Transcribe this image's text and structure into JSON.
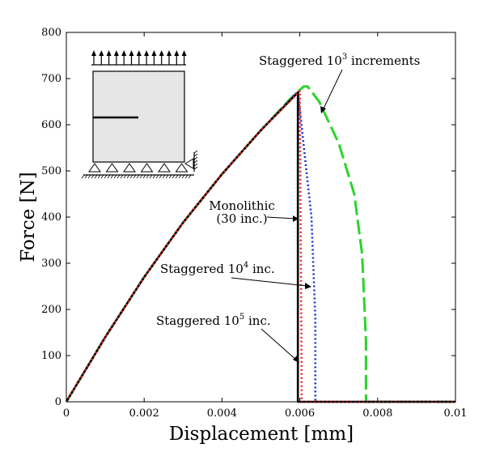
{
  "chart_data": {
    "type": "line",
    "xlabel": "Displacement [mm]",
    "ylabel": "Force [N]",
    "xlim": [
      0,
      0.01
    ],
    "ylim": [
      0,
      800
    ],
    "x_ticks": [
      0,
      0.002,
      0.004,
      0.006,
      0.008,
      0.01
    ],
    "x_tick_labels": [
      "0",
      "0.002",
      "0.004",
      "0.006",
      "0.008",
      "0.01"
    ],
    "y_ticks": [
      0,
      100,
      200,
      300,
      400,
      500,
      600,
      700,
      800
    ],
    "y_tick_labels": [
      "0",
      "100",
      "200",
      "300",
      "400",
      "500",
      "600",
      "700",
      "800"
    ],
    "grid": false,
    "series": [
      {
        "name": "Monolithic (30 inc.)",
        "color": "#000000",
        "style": "solid",
        "points": [
          [
            0,
            0
          ],
          [
            0.001,
            140
          ],
          [
            0.002,
            270
          ],
          [
            0.003,
            388
          ],
          [
            0.004,
            493
          ],
          [
            0.005,
            588
          ],
          [
            0.00595,
            670
          ],
          [
            0.00595,
            0
          ],
          [
            0.01,
            0
          ]
        ]
      },
      {
        "name": "Staggered 10^5 inc.",
        "color": "#e8262e",
        "style": "dotted",
        "points": [
          [
            0,
            0
          ],
          [
            0.001,
            140
          ],
          [
            0.002,
            270
          ],
          [
            0.003,
            388
          ],
          [
            0.004,
            493
          ],
          [
            0.005,
            588
          ],
          [
            0.006,
            673
          ],
          [
            0.00605,
            0
          ],
          [
            0.01,
            0
          ]
        ]
      },
      {
        "name": "Staggered 10^4 inc.",
        "color": "#1f2ad8",
        "style": "dotted",
        "points": [
          [
            0,
            0
          ],
          [
            0.001,
            140
          ],
          [
            0.002,
            270
          ],
          [
            0.003,
            388
          ],
          [
            0.004,
            493
          ],
          [
            0.005,
            588
          ],
          [
            0.00595,
            672
          ],
          [
            0.0063,
            400
          ],
          [
            0.0064,
            180
          ],
          [
            0.0064,
            0
          ],
          [
            0.01,
            0
          ]
        ]
      },
      {
        "name": "Staggered 10^3 increments",
        "color": "#2bd42b",
        "style": "dashed",
        "points": [
          [
            0,
            0
          ],
          [
            0.001,
            140
          ],
          [
            0.002,
            270
          ],
          [
            0.003,
            388
          ],
          [
            0.004,
            493
          ],
          [
            0.005,
            588
          ],
          [
            0.0058,
            660
          ],
          [
            0.0061,
            683
          ],
          [
            0.0062,
            683
          ],
          [
            0.0065,
            650
          ],
          [
            0.007,
            560
          ],
          [
            0.0074,
            450
          ],
          [
            0.0076,
            320
          ],
          [
            0.0077,
            130
          ],
          [
            0.0077,
            0
          ],
          [
            0.01,
            0
          ]
        ]
      }
    ],
    "annotations": [
      {
        "id": "a3",
        "base": "Staggered 10",
        "exp": "3",
        "rest": " increments"
      },
      {
        "id": "mono1",
        "text": "Monolithic"
      },
      {
        "id": "mono2",
        "text": "(30 inc.)"
      },
      {
        "id": "a4",
        "base": "Staggered 10",
        "exp": "4",
        "rest": " inc."
      },
      {
        "id": "a5",
        "base": "Staggered 10",
        "exp": "5",
        "rest": " inc."
      }
    ]
  },
  "colors": {
    "inset_fill": "#e6e6e6",
    "axes": "#000000"
  }
}
